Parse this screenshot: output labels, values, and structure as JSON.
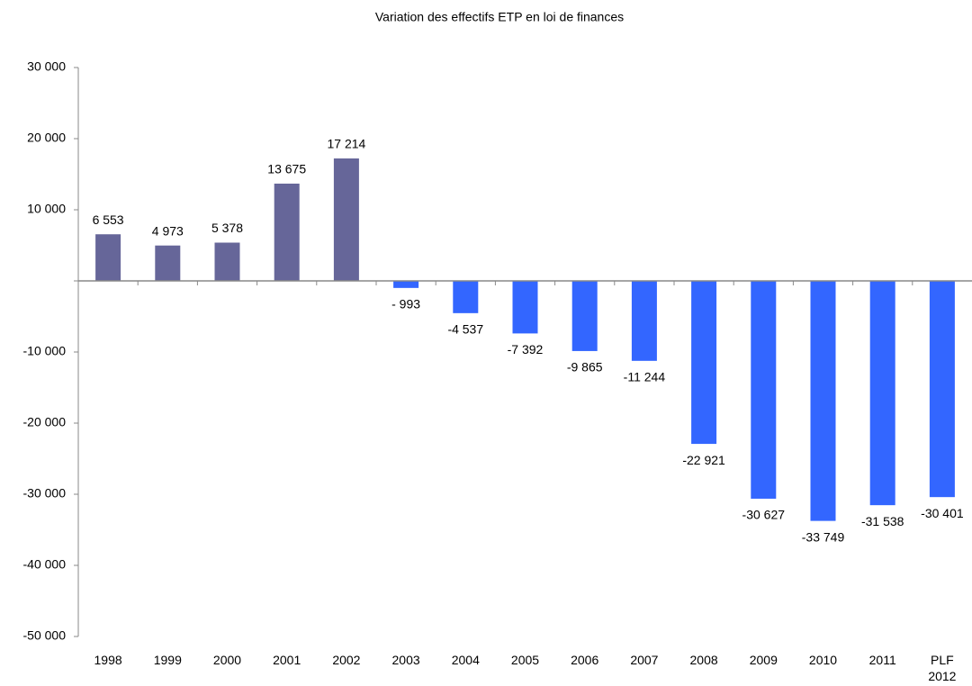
{
  "chart_data": {
    "type": "bar",
    "title": "Variation des effectifs ETP en loi de finances",
    "categories": [
      "1998",
      "1999",
      "2000",
      "2001",
      "2002",
      "2003",
      "2004",
      "2005",
      "2006",
      "2007",
      "2008",
      "2009",
      "2010",
      "2011",
      "PLF 2012"
    ],
    "values": [
      6553,
      4973,
      5378,
      13675,
      17214,
      -993,
      -4537,
      -7392,
      -9865,
      -11244,
      -22921,
      -30627,
      -33749,
      -31538,
      -30401
    ],
    "value_labels": [
      "6 553",
      "4 973",
      "5 378",
      "13 675",
      "17 214",
      "- 993",
      "-4 537",
      "-7 392",
      "-9 865",
      "-11 244",
      "-22 921",
      "-30 627",
      "-33 749",
      "-31 538",
      "-30 401"
    ],
    "colors": [
      "#666699",
      "#666699",
      "#666699",
      "#666699",
      "#666699",
      "#3366ff",
      "#3366ff",
      "#3366ff",
      "#3366ff",
      "#3366ff",
      "#3366ff",
      "#3366ff",
      "#3366ff",
      "#3366ff",
      "#3366ff"
    ],
    "ylim": [
      -50000,
      30000
    ],
    "yticks": [
      {
        "value": -50000,
        "label": "-50 000"
      },
      {
        "value": -40000,
        "label": "-40 000"
      },
      {
        "value": -30000,
        "label": "-30 000"
      },
      {
        "value": -20000,
        "label": "-20 000"
      },
      {
        "value": -10000,
        "label": "-10 000"
      },
      0,
      {
        "value": 10000,
        "label": "10 000"
      },
      {
        "value": 20000,
        "label": "20 000"
      },
      {
        "value": 30000,
        "label": "30 000"
      }
    ],
    "grid": false
  }
}
